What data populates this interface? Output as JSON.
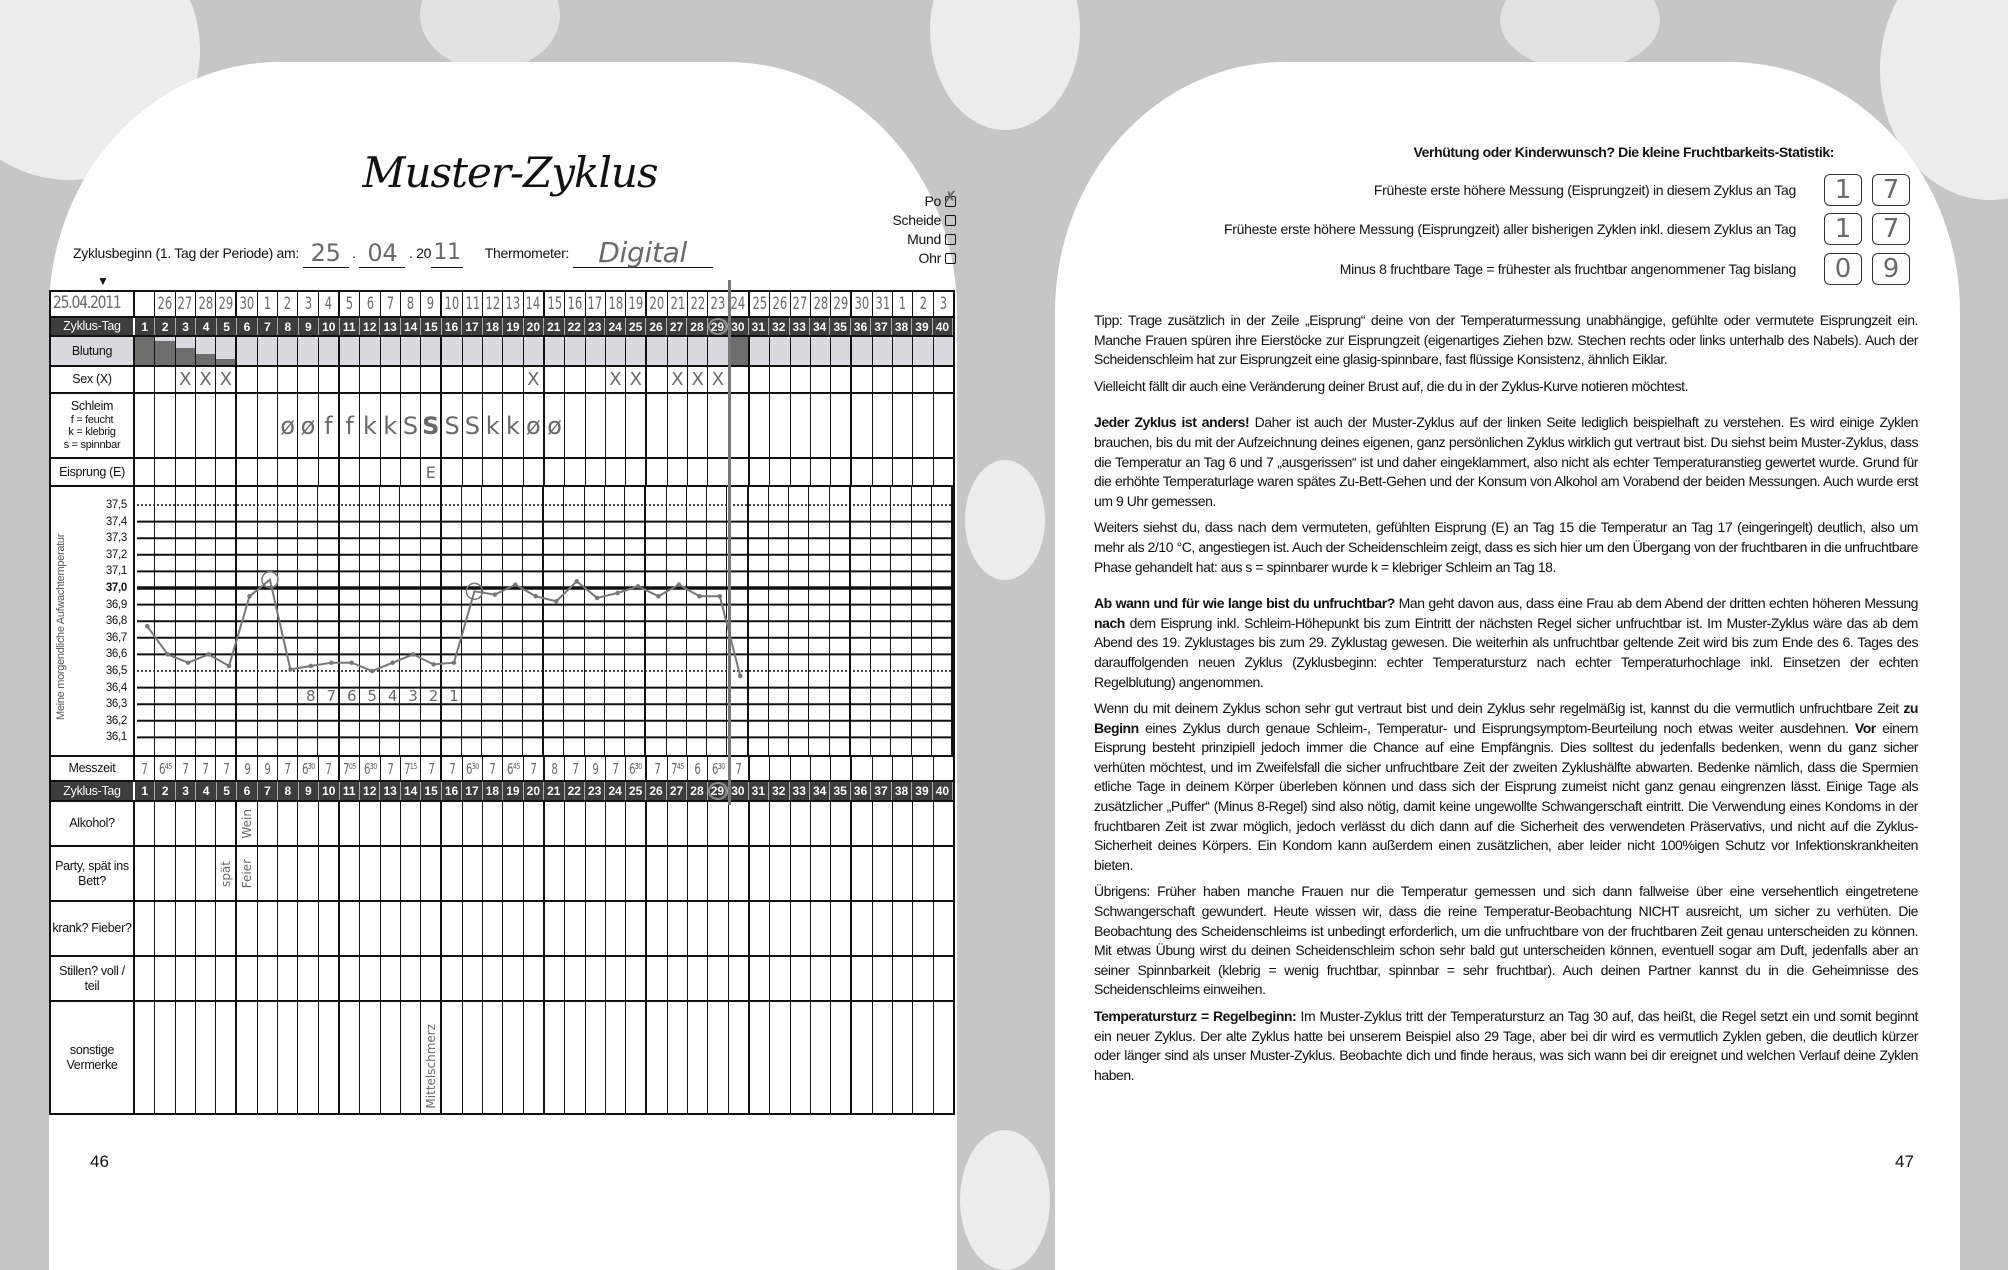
{
  "left_page": {
    "title": "Muster-Zyklus",
    "cycle_start_label": "Zyklusbeginn (1. Tag der Periode) am:",
    "cycle_start": {
      "day": "25",
      "month": "04",
      "century": "20",
      "year": "11"
    },
    "thermometer_label": "Thermometer:",
    "thermometer_value": "Digital",
    "sites": [
      {
        "label": "Po",
        "checked": true
      },
      {
        "label": "Scheide",
        "checked": false
      },
      {
        "label": "Mund",
        "checked": false
      },
      {
        "label": "Ohr",
        "checked": false
      }
    ],
    "page_number": "46"
  },
  "chart": {
    "start_date": "25.04.2011",
    "dates": [
      "",
      "26",
      "27",
      "28",
      "29",
      "30",
      "1",
      "2",
      "3",
      "4",
      "5",
      "6",
      "7",
      "8",
      "9",
      "10",
      "11",
      "12",
      "13",
      "14",
      "15",
      "16",
      "17",
      "18",
      "19",
      "20",
      "21",
      "22",
      "23",
      "24",
      "25",
      "26",
      "27",
      "28",
      "29",
      "30",
      "31",
      "1",
      "2",
      "3"
    ],
    "days": [
      "1",
      "2",
      "3",
      "4",
      "5",
      "6",
      "7",
      "8",
      "9",
      "10",
      "11",
      "12",
      "13",
      "14",
      "15",
      "16",
      "17",
      "18",
      "19",
      "20",
      "21",
      "22",
      "23",
      "24",
      "25",
      "26",
      "27",
      "28",
      "29",
      "30",
      "31",
      "32",
      "33",
      "34",
      "35",
      "36",
      "37",
      "38",
      "39",
      "40"
    ],
    "labels": {
      "cycle_day": "Zyklus-Tag",
      "bleeding": "Blutung",
      "sex": "Sex (X)",
      "mucus": [
        "Schleim",
        "f = feucht",
        "k = klebrig",
        "s = spinnbar"
      ],
      "ovulation": "Eisprung (E)",
      "temp_axis": "Meine morgendliche Aufwachtemperatur",
      "time": "Messzeit",
      "alcohol": "Alkohol?",
      "party": "Party, spät ins Bett?",
      "sick": "krank? Fieber?",
      "nursing": "Stillen? voll / teil",
      "other": "sonstige Vermerke"
    },
    "temp_ticks": [
      "37,5",
      "37,4",
      "37,3",
      "37,2",
      "37,1",
      "37,0",
      "36,9",
      "36,8",
      "36,7",
      "36,6",
      "36,5",
      "36,4",
      "36,3",
      "36,2",
      "36,1"
    ],
    "bleeding_intensity": [
      1,
      0.85,
      0.6,
      0.4,
      0.2,
      0,
      0,
      0,
      0,
      0,
      0,
      0,
      0,
      0,
      0,
      0,
      0,
      0,
      0,
      0,
      0,
      0,
      0,
      0,
      0,
      0,
      0,
      0,
      0,
      1
    ],
    "sex_marks": [
      "",
      "",
      "X",
      "X",
      "X",
      "",
      "",
      "",
      "",
      "",
      "",
      "",
      "",
      "",
      "",
      "",
      "",
      "",
      "",
      "X",
      "",
      "",
      "",
      "X",
      "X",
      "",
      "X",
      "X",
      "X",
      ""
    ],
    "mucus": [
      "",
      "",
      "",
      "",
      "",
      "",
      "",
      "ø",
      "ø",
      "f",
      "f",
      "k",
      "k",
      "S",
      "S",
      "S",
      "S",
      "k",
      "k",
      "ø",
      "ø"
    ],
    "ovulation": [
      "",
      "",
      "",
      "",
      "",
      "",
      "",
      "",
      "",
      "",
      "",
      "",
      "",
      "",
      "E"
    ],
    "temperatures": [
      36.77,
      36.6,
      36.55,
      36.6,
      36.53,
      36.95,
      37.05,
      36.51,
      36.53,
      36.55,
      36.55,
      36.5,
      36.55,
      36.6,
      36.54,
      36.55,
      36.98,
      36.96,
      37.02,
      36.95,
      36.92,
      37.04,
      36.94,
      36.97,
      37.01,
      36.95,
      37.02,
      36.95,
      36.95,
      36.47
    ],
    "circled_temp_days": [
      7,
      17
    ],
    "minus8_countdown": [
      "8",
      "7",
      "6",
      "5",
      "4",
      "3",
      "2",
      "1"
    ],
    "times": [
      "7",
      "6⁴⁵",
      "7",
      "7",
      "7",
      "9",
      "9",
      "7",
      "6³⁰",
      "7",
      "7⁰⁵",
      "6³⁰",
      "7",
      "7¹⁵",
      "7",
      "7",
      "6³⁰",
      "7",
      "6⁴⁵",
      "7",
      "8",
      "7",
      "9",
      "7",
      "6³⁰",
      "7",
      "7⁴⁵",
      "6",
      "6³⁰",
      "7"
    ],
    "circled_cycle_day": 29,
    "notes": {
      "alcohol": {
        "day": 6,
        "text": "Wein"
      },
      "party": [
        {
          "day": 5,
          "text": "spät"
        },
        {
          "day": 6,
          "text": "Feier"
        }
      ],
      "other": {
        "day": 15,
        "text": "Mittelschmerz"
      }
    }
  },
  "right_page": {
    "stats_heading": "Verhütung oder Kinderwunsch? Die kleine Fruchtbarkeits-Statistik:",
    "stats": [
      {
        "label": "Früheste erste höhere Messung (Eisprungzeit) in diesem Zyklus an Tag",
        "digits": [
          "1",
          "7"
        ]
      },
      {
        "label": "Früheste erste höhere Messung (Eisprungzeit) aller bisherigen Zyklen inkl. diesem Zyklus an Tag",
        "digits": [
          "1",
          "7"
        ]
      },
      {
        "label": "Minus 8 fruchtbare Tage = frühester als fruchtbar angenommener Tag bislang",
        "digits": [
          "0",
          "9"
        ]
      }
    ],
    "paragraphs": [
      [
        {
          "t": "Tipp: Trage zusätzlich in der Zeile „Eisprung“ deine von der Temperaturmessung unabhängige, gefühlte oder vermutete Eisprungzeit ein. Manche Frauen spüren ihre Eierstöcke zur Eisprungzeit (eigenartiges Ziehen bzw. Stechen rechts oder links unterhalb des Nabels). Auch der Scheidenschleim hat zur Eisprungzeit eine glasig-spinnbare, fast flüssige Konsistenz, ähnlich Eiklar."
        }
      ],
      [
        {
          "t": "Vielleicht fällt dir auch eine Veränderung deiner Brust auf, die du in der Zyklus-Kurve notieren möchtest."
        }
      ],
      [
        {
          "b": true,
          "t": "Jeder Zyklus ist anders!"
        },
        {
          "t": " Daher ist auch der Muster-Zyklus auf der linken Seite lediglich beispielhaft zu verstehen. Es wird einige Zyklen brauchen, bis du mit der Aufzeichnung deines eigenen, ganz persönlichen Zyklus wirklich gut vertraut bist. Du siehst beim Muster-Zyklus, dass die Temperatur an Tag 6 und 7 „ausgerissen“ ist und daher eingeklammert, also nicht als echter Temperaturanstieg gewertet wurde. Grund für die erhöhte Temperaturlage waren spätes Zu-Bett-Gehen und der Konsum von Alkohol am Vorabend der beiden Messungen. Auch wurde erst um 9 Uhr gemessen."
        }
      ],
      [
        {
          "t": "Weiters siehst du, dass nach dem vermuteten, gefühlten Eisprung (E) an Tag 15 die Temperatur an Tag 17 (eingeringelt) deutlich, also um mehr als 2/10 °C, angestiegen ist. Auch der Scheidenschleim zeigt, dass es sich hier um den Übergang von der fruchtbaren in die unfruchtbare Phase gehandelt hat: aus s = spinnbarer wurde k = klebriger Schleim an Tag 18."
        }
      ],
      [
        {
          "b": true,
          "t": "Ab wann und für wie lange bist du unfruchtbar?"
        },
        {
          "t": " Man geht davon aus, dass eine Frau ab dem Abend der dritten echten höheren Messung "
        },
        {
          "b": true,
          "t": "nach"
        },
        {
          "t": " dem Eisprung inkl. Schleim-Höhepunkt bis zum Eintritt der nächsten Regel sicher unfruchtbar ist. Im Muster-Zyklus wäre das ab dem Abend des 19. Zyklustages bis zum 29. Zyklustag gewesen. Die weiterhin als unfruchtbar geltende Zeit wird bis zum Ende des 6. Tages des darauffolgenden neuen Zyklus (Zyklusbeginn: echter Temperatursturz nach echter Temperaturhochlage inkl. Einsetzen der echten Regelblutung) angenommen."
        }
      ],
      [
        {
          "t": "Wenn du mit deinem Zyklus schon sehr gut vertraut bist und dein Zyklus sehr regelmäßig ist, kannst du die vermutlich unfruchtbare Zeit "
        },
        {
          "b": true,
          "t": "zu Beginn"
        },
        {
          "t": " eines Zyklus durch genaue Schleim-, Temperatur- und Eisprungsymptom-Beurteilung noch etwas weiter ausdehnen. "
        },
        {
          "b": true,
          "t": "Vor"
        },
        {
          "t": " einem Eisprung besteht prinzipiell jedoch immer die Chance auf eine Empfängnis. Dies solltest du jedenfalls bedenken, wenn du ganz sicher verhüten möchtest, und im Zweifelsfall die sicher unfruchtbare Zeit der zweiten Zyklushälfte abwarten. Bedenke nämlich, dass die Spermien etliche Tage in deinem Körper überleben können und dass sich der Eisprung zumeist nicht ganz genau eingrenzen lässt. Einige Tage als zusätzlicher „Puffer“ (Minus 8-Regel) sind also nötig, damit keine ungewollte Schwangerschaft eintritt. Die Verwendung eines Kondoms in der fruchtbaren Zeit ist zwar möglich, jedoch verlässt du dich dann auf die Sicherheit des verwendeten Präservativs, und nicht auf die Zyklus-Sicherheit deines Körpers. Ein Kondom kann außerdem einen zusätzlichen, aber leider nicht 100%igen Schutz vor Infektionskrankheiten bieten."
        }
      ],
      [
        {
          "t": "Übrigens: Früher haben manche Frauen nur die Temperatur gemessen und sich dann fallweise über eine versehentlich eingetretene Schwangerschaft gewundert. Heute wissen wir, dass die reine Temperatur-Beobachtung NICHT ausreicht, um sicher zu verhüten. Die Beobachtung des Scheidenschleims ist unbedingt erforderlich, um die unfruchtbare von der fruchtbaren Zeit genau unterscheiden zu können. Mit etwas Übung wirst du deinen Scheidenschleim schon sehr bald gut unterscheiden können, eventuell sogar am Duft, jedenfalls aber an seiner Spinnbarkeit (klebrig = wenig fruchtbar, spinnbar = sehr fruchtbar). Auch deinen Partner kannst du in die Geheimnisse des Scheidenschleims einweihen."
        }
      ],
      [
        {
          "b": true,
          "t": "Temperatursturz = Regelbeginn:"
        },
        {
          "t": " Im Muster-Zyklus tritt der Temperatursturz an Tag 30 auf, das heißt, die Regel setzt ein und somit beginnt ein neuer Zyklus. Der alte Zyklus hatte bei unserem Beispiel also 29 Tage, aber bei dir wird es vermutlich Zyklen geben, die deutlich kürzer oder länger sind als unser Muster-Zyklus. Beobachte dich und finde heraus, was sich wann bei dir ereignet und welchen Verlauf deine Zyklen haben."
        }
      ]
    ],
    "page_number": "47"
  },
  "colors": {
    "handwriting": "#666666",
    "header_row": "#3d3d3d",
    "bleeding_row": "#d9d9de",
    "background": "#c6c6c6"
  }
}
